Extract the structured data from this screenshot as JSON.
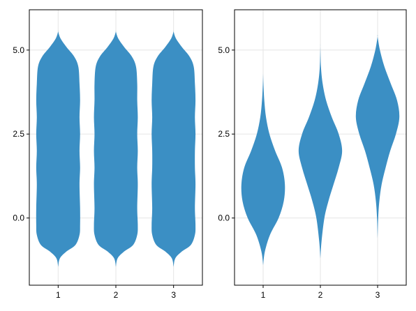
{
  "chart_data": [
    {
      "type": "violin",
      "categories": [
        "1",
        "2",
        "3"
      ],
      "x": [
        1,
        2,
        3
      ],
      "xlim": [
        0.5,
        3.5
      ],
      "ylim": [
        -2.0,
        6.2
      ],
      "yticks": [
        0.0,
        2.5,
        5.0
      ],
      "ytick_labels": [
        "0.0",
        "2.5",
        "5.0"
      ],
      "xtick_labels": [
        "1",
        "2",
        "3"
      ],
      "grid": true,
      "color": "#3b8fc4",
      "title": "",
      "xlabel": "",
      "ylabel": "",
      "series": [
        {
          "values": [
            [
              -1.45,
              0.0
            ],
            [
              -1.2,
              0.03
            ],
            [
              -1.0,
              0.14
            ],
            [
              -0.8,
              0.3
            ],
            [
              -0.5,
              0.37
            ],
            [
              -0.2,
              0.38
            ],
            [
              0.3,
              0.38
            ],
            [
              1.0,
              0.37
            ],
            [
              1.5,
              0.38
            ],
            [
              2.0,
              0.37
            ],
            [
              2.5,
              0.38
            ],
            [
              3.0,
              0.37
            ],
            [
              3.5,
              0.38
            ],
            [
              4.0,
              0.37
            ],
            [
              4.5,
              0.35
            ],
            [
              4.8,
              0.28
            ],
            [
              5.1,
              0.14
            ],
            [
              5.35,
              0.04
            ],
            [
              5.55,
              0.0
            ]
          ]
        },
        {
          "values": [
            [
              -1.45,
              0.0
            ],
            [
              -1.2,
              0.03
            ],
            [
              -1.0,
              0.14
            ],
            [
              -0.8,
              0.3
            ],
            [
              -0.5,
              0.37
            ],
            [
              -0.2,
              0.38
            ],
            [
              0.3,
              0.37
            ],
            [
              1.0,
              0.38
            ],
            [
              1.5,
              0.37
            ],
            [
              2.0,
              0.38
            ],
            [
              2.5,
              0.37
            ],
            [
              3.0,
              0.38
            ],
            [
              3.5,
              0.37
            ],
            [
              4.0,
              0.37
            ],
            [
              4.5,
              0.35
            ],
            [
              4.8,
              0.28
            ],
            [
              5.1,
              0.14
            ],
            [
              5.35,
              0.04
            ],
            [
              5.55,
              0.0
            ]
          ]
        },
        {
          "values": [
            [
              -1.45,
              0.0
            ],
            [
              -1.2,
              0.03
            ],
            [
              -1.0,
              0.14
            ],
            [
              -0.8,
              0.3
            ],
            [
              -0.5,
              0.37
            ],
            [
              -0.2,
              0.38
            ],
            [
              0.3,
              0.37
            ],
            [
              1.0,
              0.38
            ],
            [
              1.5,
              0.37
            ],
            [
              2.0,
              0.37
            ],
            [
              2.5,
              0.38
            ],
            [
              3.0,
              0.37
            ],
            [
              3.5,
              0.38
            ],
            [
              4.0,
              0.37
            ],
            [
              4.5,
              0.35
            ],
            [
              4.8,
              0.28
            ],
            [
              5.1,
              0.14
            ],
            [
              5.35,
              0.04
            ],
            [
              5.55,
              0.0
            ]
          ]
        }
      ]
    },
    {
      "type": "violin",
      "categories": [
        "1",
        "2",
        "3"
      ],
      "x": [
        1,
        2,
        3
      ],
      "xlim": [
        0.5,
        3.5
      ],
      "ylim": [
        -2.0,
        6.2
      ],
      "yticks": [
        0.0,
        2.5,
        5.0
      ],
      "ytick_labels": [
        "0.0",
        "2.5",
        "5.0"
      ],
      "xtick_labels": [
        "1",
        "2",
        "3"
      ],
      "grid": true,
      "color": "#3b8fc4",
      "title": "",
      "xlabel": "",
      "ylabel": "",
      "series": [
        {
          "values": [
            [
              -1.4,
              0.0
            ],
            [
              -1.0,
              0.03
            ],
            [
              -0.5,
              0.12
            ],
            [
              0.0,
              0.27
            ],
            [
              0.5,
              0.36
            ],
            [
              1.0,
              0.38
            ],
            [
              1.5,
              0.33
            ],
            [
              2.0,
              0.21
            ],
            [
              2.5,
              0.11
            ],
            [
              3.0,
              0.05
            ],
            [
              3.5,
              0.02
            ],
            [
              4.0,
              0.005
            ],
            [
              4.3,
              0.0
            ]
          ]
        },
        {
          "values": [
            [
              -1.2,
              0.0
            ],
            [
              -0.7,
              0.02
            ],
            [
              0.0,
              0.07
            ],
            [
              0.5,
              0.14
            ],
            [
              1.0,
              0.23
            ],
            [
              1.5,
              0.32
            ],
            [
              2.0,
              0.38
            ],
            [
              2.5,
              0.32
            ],
            [
              3.0,
              0.2
            ],
            [
              3.5,
              0.1
            ],
            [
              4.0,
              0.04
            ],
            [
              4.5,
              0.01
            ],
            [
              5.1,
              0.0
            ]
          ]
        },
        {
          "values": [
            [
              -0.6,
              0.0
            ],
            [
              0.0,
              0.01
            ],
            [
              0.5,
              0.03
            ],
            [
              1.0,
              0.07
            ],
            [
              1.5,
              0.14
            ],
            [
              2.0,
              0.22
            ],
            [
              2.5,
              0.32
            ],
            [
              3.0,
              0.38
            ],
            [
              3.5,
              0.34
            ],
            [
              4.0,
              0.23
            ],
            [
              4.5,
              0.12
            ],
            [
              5.0,
              0.04
            ],
            [
              5.4,
              0.0
            ]
          ]
        }
      ]
    }
  ]
}
